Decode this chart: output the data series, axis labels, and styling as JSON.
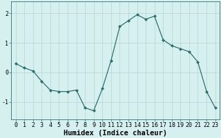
{
  "x": [
    0,
    1,
    2,
    3,
    4,
    5,
    6,
    7,
    8,
    9,
    10,
    11,
    12,
    13,
    14,
    15,
    16,
    17,
    18,
    19,
    20,
    21,
    22,
    23
  ],
  "y": [
    0.3,
    0.15,
    0.05,
    -0.3,
    -0.6,
    -0.65,
    -0.65,
    -0.6,
    -1.2,
    -1.3,
    -0.55,
    0.4,
    1.55,
    1.75,
    1.95,
    1.8,
    1.9,
    1.1,
    0.9,
    0.8,
    0.7,
    0.35,
    -0.65,
    -1.2
  ],
  "line_color": "#2d6e6e",
  "marker": "D",
  "marker_size": 2,
  "bg_color": "#d6f0f0",
  "grid_color": "#b8d8d8",
  "xlabel": "Humidex (Indice chaleur)",
  "ylim": [
    -1.6,
    2.4
  ],
  "xlim": [
    -0.5,
    23.5
  ],
  "yticks": [
    -1,
    0,
    1,
    2
  ],
  "xticks": [
    0,
    1,
    2,
    3,
    4,
    5,
    6,
    7,
    8,
    9,
    10,
    11,
    12,
    13,
    14,
    15,
    16,
    17,
    18,
    19,
    20,
    21,
    22,
    23
  ],
  "tick_fontsize": 6.0,
  "xlabel_fontsize": 7.5,
  "xlabel_fontweight": "bold"
}
